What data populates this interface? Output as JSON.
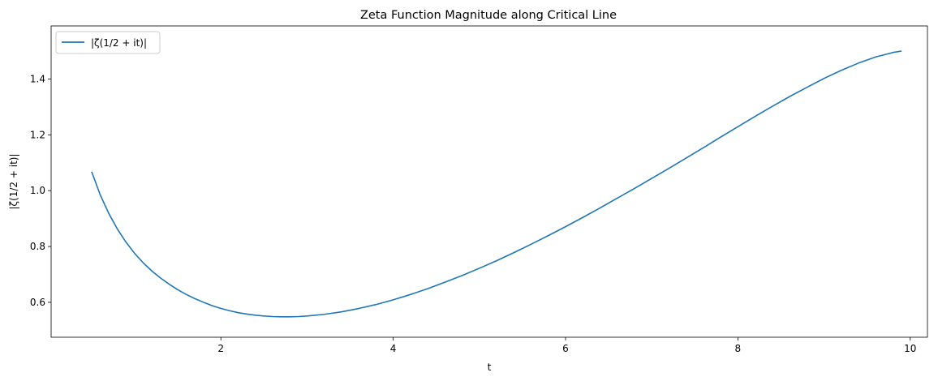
{
  "chart_data": {
    "type": "line",
    "title": "Zeta Function Magnitude along Critical Line",
    "xlabel": "t",
    "ylabel": "|ζ(1/2 + it)|",
    "xlim": [
      0.03,
      10.2
    ],
    "ylim": [
      0.475,
      1.59
    ],
    "xticks": [
      2,
      4,
      6,
      8,
      10
    ],
    "yticks": [
      0.6,
      0.8,
      1.0,
      1.2,
      1.4
    ],
    "xtick_labels": [
      "2",
      "4",
      "6",
      "8",
      "10"
    ],
    "ytick_labels": [
      "0.6",
      "0.8",
      "1.0",
      "1.2",
      "1.4"
    ],
    "grid": false,
    "legend_position": "upper-left",
    "series": [
      {
        "name": "|ζ(1/2 + it)|",
        "color": "#1f77b4",
        "x": [
          0.5,
          0.6,
          0.7,
          0.8,
          0.9,
          1.0,
          1.1,
          1.2,
          1.3,
          1.4,
          1.5,
          1.6,
          1.7,
          1.8,
          1.9,
          2.0,
          2.1,
          2.2,
          2.3,
          2.4,
          2.5,
          2.6,
          2.7,
          2.8,
          2.9,
          3.0,
          3.2,
          3.4,
          3.6,
          3.8,
          4.0,
          4.2,
          4.4,
          4.6,
          4.8,
          5.0,
          5.2,
          5.4,
          5.6,
          5.8,
          6.0,
          6.2,
          6.4,
          6.6,
          6.8,
          7.0,
          7.2,
          7.4,
          7.6,
          7.8,
          8.0,
          8.2,
          8.4,
          8.6,
          8.8,
          9.0,
          9.2,
          9.4,
          9.6,
          9.8,
          9.9
        ],
        "y": [
          1.068,
          0.985,
          0.918,
          0.862,
          0.815,
          0.775,
          0.741,
          0.712,
          0.687,
          0.665,
          0.645,
          0.628,
          0.613,
          0.6,
          0.588,
          0.578,
          0.57,
          0.563,
          0.558,
          0.554,
          0.551,
          0.549,
          0.548,
          0.548,
          0.549,
          0.551,
          0.557,
          0.566,
          0.578,
          0.592,
          0.609,
          0.628,
          0.649,
          0.672,
          0.696,
          0.722,
          0.749,
          0.778,
          0.808,
          0.839,
          0.871,
          0.904,
          0.938,
          0.973,
          1.008,
          1.044,
          1.08,
          1.117,
          1.154,
          1.192,
          1.229,
          1.266,
          1.302,
          1.337,
          1.37,
          1.402,
          1.431,
          1.457,
          1.479,
          1.495,
          1.5
        ]
      }
    ]
  }
}
